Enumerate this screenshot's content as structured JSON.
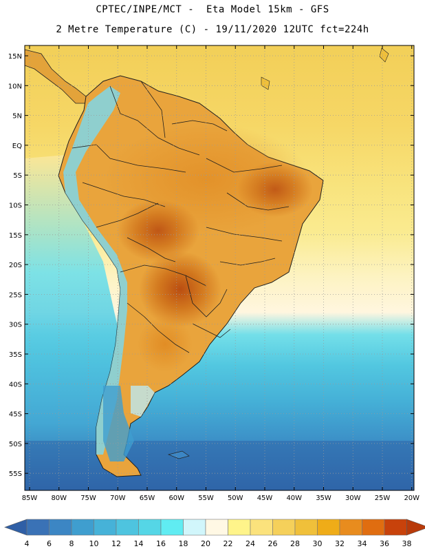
{
  "header": {
    "line1": "CPTEC/INPE/MCT -  Eta Model 15km - GFS",
    "line2": "2 Metre Temperature (C) - 19/11/2020 12UTC fct=224h"
  },
  "map": {
    "lat_labels": [
      "15N",
      "10N",
      "5N",
      "EQ",
      "5S",
      "10S",
      "15S",
      "20S",
      "25S",
      "30S",
      "35S",
      "40S",
      "45S",
      "50S",
      "55S"
    ],
    "lon_labels": [
      "85W",
      "80W",
      "75W",
      "70W",
      "65W",
      "60W",
      "55W",
      "50W",
      "45W",
      "40W",
      "35W",
      "30W",
      "25W",
      "20W"
    ],
    "ocean_north_color": "#f2d05a",
    "ocean_south_color": "#3a8fc8"
  },
  "legend": {
    "values": [
      "4",
      "6",
      "8",
      "10",
      "12",
      "14",
      "16",
      "18",
      "20",
      "22",
      "24",
      "26",
      "28",
      "30",
      "32",
      "34",
      "36",
      "38"
    ],
    "colors": [
      "#3a72b6",
      "#3c86c4",
      "#3f9ecf",
      "#46b2d8",
      "#4ec4df",
      "#55d6e6",
      "#60ecf2",
      "#d1f6fb",
      "#fff8e4",
      "#fff48a",
      "#fbe27c",
      "#f5d05a",
      "#f0c03a",
      "#efac18",
      "#e88c1e",
      "#e06d10",
      "#c8420b"
    ],
    "left_arrow_color": "#2f5fa6",
    "right_arrow_color": "#b83a0a"
  }
}
